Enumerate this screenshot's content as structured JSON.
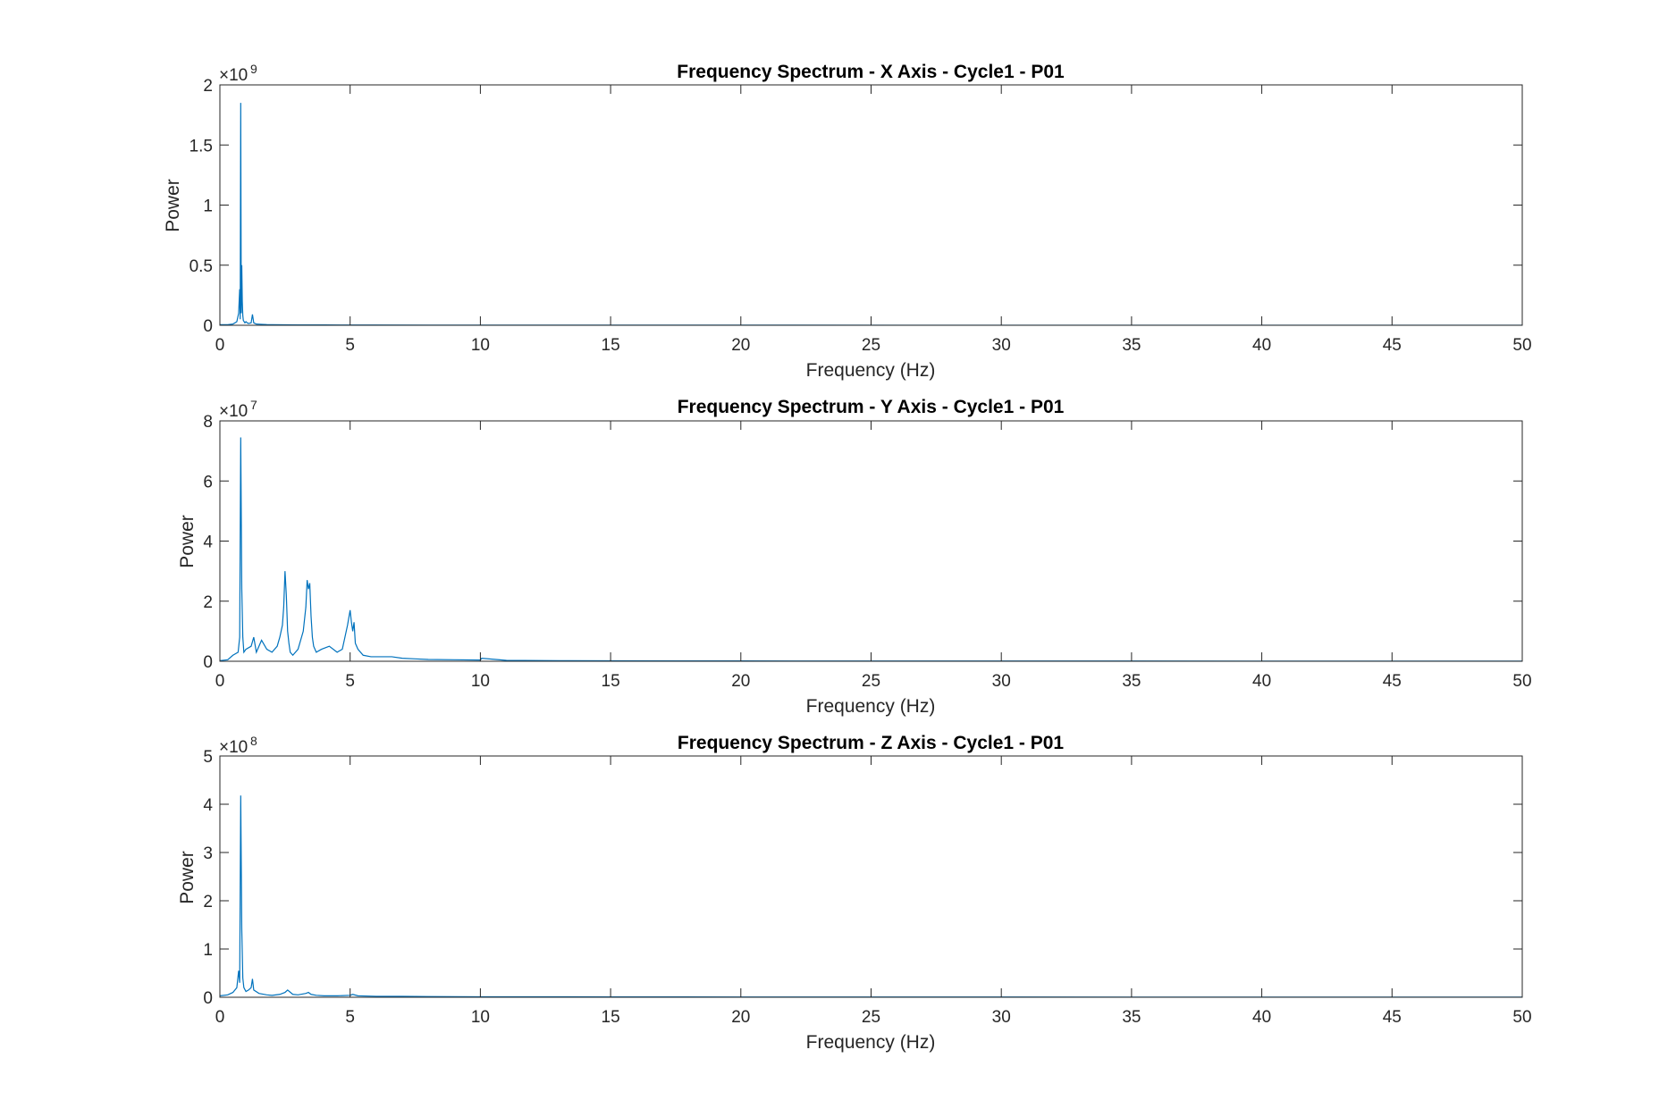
{
  "chart_data": [
    {
      "type": "line",
      "title": "Frequency Spectrum - X Axis - Cycle1 - P01",
      "xlabel": "Frequency (Hz)",
      "ylabel": "Power",
      "xlim": [
        0,
        50
      ],
      "ylim": [
        0,
        2000000000
      ],
      "x_ticks": [
        "0",
        "5",
        "10",
        "15",
        "20",
        "25",
        "30",
        "35",
        "40",
        "45",
        "50"
      ],
      "y_ticks": [
        "0",
        "0.5",
        "1",
        "1.5",
        "2"
      ],
      "y_exponent": "9",
      "y_scale": 1000000000,
      "color": "#0072BD",
      "grid": false,
      "series": [
        {
          "x": [
            0,
            0.3,
            0.5,
            0.65,
            0.72,
            0.76,
            0.78,
            0.8,
            0.82,
            0.84,
            0.86,
            0.88,
            0.9,
            0.93,
            0.96,
            1.0,
            1.05,
            1.1,
            1.2,
            1.25,
            1.3,
            1.4,
            1.6,
            1.8,
            2.0,
            2.5,
            3.0,
            4.0,
            5.0,
            6.0,
            8.0,
            10.0,
            15.0,
            20.0,
            30.0,
            40.0,
            50.0
          ],
          "y": [
            0.005,
            0.005,
            0.01,
            0.03,
            0.1,
            0.3,
            0.05,
            1.85,
            0.1,
            0.5,
            0.2,
            0.08,
            0.04,
            0.03,
            0.02,
            0.03,
            0.02,
            0.015,
            0.02,
            0.09,
            0.02,
            0.01,
            0.008,
            0.006,
            0.005,
            0.004,
            0.003,
            0.003,
            0.002,
            0.002,
            0.0015,
            0.001,
            0.001,
            0.0008,
            0.0005,
            0.0004,
            0.0003
          ]
        }
      ]
    },
    {
      "type": "line",
      "title": "Frequency Spectrum - Y Axis - Cycle1 - P01",
      "xlabel": "Frequency (Hz)",
      "ylabel": "Power",
      "xlim": [
        0,
        50
      ],
      "ylim": [
        0,
        80000000
      ],
      "x_ticks": [
        "0",
        "5",
        "10",
        "15",
        "20",
        "25",
        "30",
        "35",
        "40",
        "45",
        "50"
      ],
      "y_ticks": [
        "0",
        "2",
        "4",
        "6",
        "8"
      ],
      "y_exponent": "7",
      "y_scale": 10000000,
      "color": "#0072BD",
      "grid": false,
      "series": [
        {
          "x": [
            0,
            0.3,
            0.5,
            0.7,
            0.76,
            0.8,
            0.84,
            0.88,
            0.92,
            1.0,
            1.2,
            1.3,
            1.4,
            1.6,
            1.8,
            2.0,
            2.2,
            2.3,
            2.4,
            2.45,
            2.5,
            2.55,
            2.6,
            2.65,
            2.7,
            2.8,
            3.0,
            3.2,
            3.3,
            3.35,
            3.4,
            3.45,
            3.5,
            3.55,
            3.6,
            3.7,
            3.9,
            4.2,
            4.5,
            4.7,
            4.8,
            4.9,
            5.0,
            5.05,
            5.1,
            5.15,
            5.2,
            5.3,
            5.5,
            5.8,
            6.2,
            6.6,
            7.0,
            7.5,
            8.0,
            9.0,
            10.0,
            10.05,
            11.0,
            13.0,
            15.0,
            20.0,
            30.0,
            40.0,
            50.0
          ],
          "y": [
            0.02,
            0.05,
            0.2,
            0.3,
            0.8,
            7.45,
            2.4,
            0.8,
            0.3,
            0.4,
            0.5,
            0.8,
            0.3,
            0.7,
            0.4,
            0.3,
            0.5,
            0.8,
            1.2,
            1.8,
            3.0,
            2.2,
            1.0,
            0.6,
            0.3,
            0.2,
            0.4,
            1.0,
            1.8,
            2.7,
            2.4,
            2.6,
            1.5,
            0.8,
            0.5,
            0.3,
            0.4,
            0.5,
            0.3,
            0.4,
            0.8,
            1.2,
            1.7,
            1.3,
            1.0,
            1.3,
            0.6,
            0.4,
            0.2,
            0.15,
            0.15,
            0.15,
            0.1,
            0.08,
            0.06,
            0.05,
            0.04,
            0.1,
            0.03,
            0.02,
            0.015,
            0.01,
            0.008,
            0.005,
            0.004
          ]
        }
      ]
    },
    {
      "type": "line",
      "title": "Frequency Spectrum - Z Axis - Cycle1 - P01",
      "xlabel": "Frequency (Hz)",
      "ylabel": "Power",
      "xlim": [
        0,
        50
      ],
      "ylim": [
        0,
        500000000
      ],
      "x_ticks": [
        "0",
        "5",
        "10",
        "15",
        "20",
        "25",
        "30",
        "35",
        "40",
        "45",
        "50"
      ],
      "y_ticks": [
        "0",
        "1",
        "2",
        "3",
        "4",
        "5"
      ],
      "y_exponent": "8",
      "y_scale": 100000000,
      "color": "#0072BD",
      "grid": false,
      "series": [
        {
          "x": [
            0,
            0.3,
            0.5,
            0.65,
            0.72,
            0.76,
            0.8,
            0.84,
            0.88,
            0.92,
            1.0,
            1.1,
            1.2,
            1.25,
            1.3,
            1.5,
            1.8,
            2.0,
            2.3,
            2.5,
            2.6,
            2.8,
            3.0,
            3.3,
            3.4,
            3.5,
            3.7,
            4.0,
            4.5,
            5.0,
            5.1,
            5.3,
            6.0,
            7.0,
            8.0,
            10.0,
            15.0,
            20.0,
            30.0,
            40.0,
            50.0
          ],
          "y": [
            0.03,
            0.05,
            0.1,
            0.2,
            0.55,
            0.3,
            4.18,
            1.4,
            0.4,
            0.2,
            0.12,
            0.15,
            0.2,
            0.38,
            0.15,
            0.08,
            0.05,
            0.04,
            0.06,
            0.1,
            0.15,
            0.06,
            0.05,
            0.08,
            0.1,
            0.06,
            0.04,
            0.03,
            0.03,
            0.04,
            0.06,
            0.03,
            0.02,
            0.02,
            0.015,
            0.01,
            0.008,
            0.006,
            0.004,
            0.003,
            0.002
          ]
        }
      ]
    }
  ]
}
